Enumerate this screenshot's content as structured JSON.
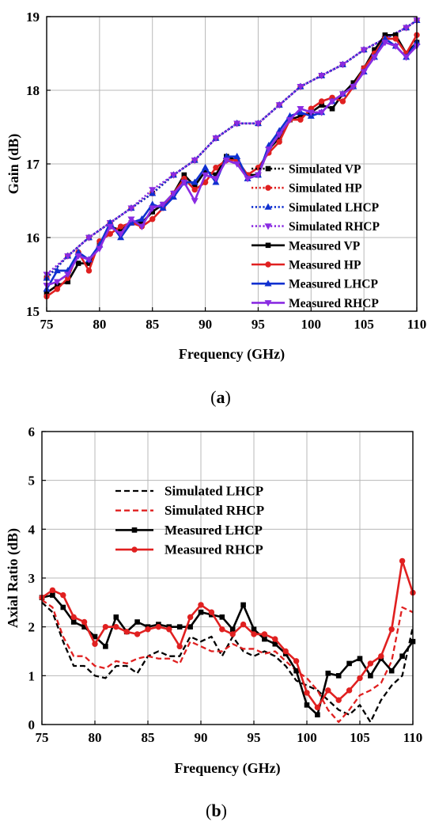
{
  "chart_data": [
    {
      "type": "line",
      "panel_label": [
        "(",
        "a",
        ")"
      ],
      "xlabel": "Frequency (GHz)",
      "ylabel": "Gain (dB)",
      "xlim": [
        75,
        110
      ],
      "ylim": [
        15,
        19
      ],
      "xticks": [
        75,
        80,
        85,
        90,
        95,
        100,
        105,
        110
      ],
      "yticks": [
        15,
        16,
        17,
        18,
        19
      ],
      "grid": true,
      "legend_position": "bottom-right",
      "series": [
        {
          "name": "Simulated VP",
          "style": "dotted",
          "marker": "square",
          "color": "#000000",
          "x": [
            75,
            77,
            79,
            81,
            83,
            85,
            87,
            89,
            91,
            93,
            95,
            97,
            99,
            101,
            103,
            105,
            107,
            109,
            110
          ],
          "y": [
            15.45,
            15.75,
            16.0,
            16.2,
            16.4,
            16.6,
            16.85,
            17.05,
            17.35,
            17.55,
            17.55,
            17.8,
            18.05,
            18.2,
            18.35,
            18.55,
            18.7,
            18.85,
            18.95
          ]
        },
        {
          "name": "Simulated HP",
          "style": "dotted",
          "marker": "circle",
          "color": "#e02020",
          "x": [
            75,
            77,
            79,
            81,
            83,
            85,
            87,
            89,
            91,
            93,
            95,
            97,
            99,
            101,
            103,
            105,
            107,
            109,
            110
          ],
          "y": [
            15.45,
            15.75,
            16.0,
            16.2,
            16.4,
            16.6,
            16.85,
            17.05,
            17.35,
            17.55,
            17.55,
            17.8,
            18.05,
            18.2,
            18.35,
            18.55,
            18.7,
            18.85,
            18.95
          ]
        },
        {
          "name": "Simulated LHCP",
          "style": "dotted",
          "marker": "triangle-up",
          "color": "#1030d0",
          "x": [
            75,
            77,
            79,
            81,
            83,
            85,
            87,
            89,
            91,
            93,
            95,
            97,
            99,
            101,
            103,
            105,
            107,
            109,
            110
          ],
          "y": [
            15.45,
            15.75,
            16.0,
            16.2,
            16.4,
            16.6,
            16.85,
            17.05,
            17.35,
            17.55,
            17.55,
            17.8,
            18.05,
            18.2,
            18.35,
            18.55,
            18.7,
            18.85,
            18.95
          ]
        },
        {
          "name": "Simulated RHCP",
          "style": "dotted",
          "marker": "triangle-down",
          "color": "#8a2be2",
          "x": [
            75,
            77,
            79,
            81,
            83,
            85,
            87,
            89,
            91,
            93,
            95,
            97,
            99,
            101,
            103,
            105,
            107,
            109,
            110
          ],
          "y": [
            15.5,
            15.75,
            16.0,
            16.2,
            16.4,
            16.65,
            16.85,
            17.05,
            17.35,
            17.55,
            17.55,
            17.8,
            18.05,
            18.2,
            18.35,
            18.55,
            18.7,
            18.85,
            18.95
          ]
        },
        {
          "name": "Measured VP",
          "style": "solid",
          "marker": "square",
          "color": "#000000",
          "x": [
            75,
            76,
            77,
            78,
            79,
            80,
            81,
            82,
            83,
            84,
            85,
            86,
            87,
            88,
            89,
            90,
            91,
            92,
            93,
            94,
            95,
            96,
            97,
            98,
            99,
            100,
            101,
            102,
            103,
            104,
            105,
            106,
            107,
            108,
            109,
            110
          ],
          "y": [
            15.25,
            15.35,
            15.4,
            15.65,
            15.65,
            15.9,
            16.15,
            16.1,
            16.2,
            16.2,
            16.35,
            16.45,
            16.6,
            16.85,
            16.7,
            16.9,
            16.85,
            17.1,
            17.05,
            16.85,
            16.85,
            17.2,
            17.35,
            17.6,
            17.65,
            17.7,
            17.8,
            17.75,
            17.95,
            18.1,
            18.3,
            18.55,
            18.75,
            18.75,
            18.5,
            18.65
          ]
        },
        {
          "name": "Measured HP",
          "style": "solid",
          "marker": "circle",
          "color": "#e02020",
          "x": [
            75,
            76,
            77,
            78,
            79,
            80,
            81,
            82,
            83,
            84,
            85,
            86,
            87,
            88,
            89,
            90,
            91,
            92,
            93,
            94,
            95,
            96,
            97,
            98,
            99,
            100,
            101,
            102,
            103,
            104,
            105,
            106,
            107,
            108,
            109,
            110
          ],
          "y": [
            15.2,
            15.3,
            15.45,
            15.8,
            15.55,
            15.95,
            16.05,
            16.15,
            16.2,
            16.15,
            16.25,
            16.4,
            16.6,
            16.8,
            16.65,
            16.75,
            16.95,
            17.05,
            17.05,
            16.85,
            16.95,
            17.15,
            17.3,
            17.6,
            17.6,
            17.75,
            17.85,
            17.9,
            17.85,
            18.05,
            18.3,
            18.5,
            18.7,
            18.7,
            18.5,
            18.75
          ]
        },
        {
          "name": "Measured LHCP",
          "style": "solid",
          "marker": "triangle-up",
          "color": "#1030d0",
          "x": [
            75,
            76,
            77,
            78,
            79,
            80,
            81,
            82,
            83,
            84,
            85,
            86,
            87,
            88,
            89,
            90,
            91,
            92,
            93,
            94,
            95,
            96,
            97,
            98,
            99,
            100,
            101,
            102,
            103,
            104,
            105,
            106,
            107,
            108,
            109,
            110
          ],
          "y": [
            15.3,
            15.55,
            15.55,
            15.8,
            15.7,
            15.9,
            16.2,
            16.0,
            16.2,
            16.25,
            16.45,
            16.4,
            16.55,
            16.75,
            16.75,
            16.95,
            16.75,
            17.1,
            17.1,
            16.8,
            16.85,
            17.25,
            17.45,
            17.65,
            17.7,
            17.65,
            17.7,
            17.85,
            17.95,
            18.05,
            18.25,
            18.45,
            18.7,
            18.6,
            18.45,
            18.65
          ]
        },
        {
          "name": "Measured RHCP",
          "style": "solid",
          "marker": "triangle-down",
          "color": "#8a2be2",
          "x": [
            75,
            76,
            77,
            78,
            79,
            80,
            81,
            82,
            83,
            84,
            85,
            86,
            87,
            88,
            89,
            90,
            91,
            92,
            93,
            94,
            95,
            96,
            97,
            98,
            99,
            100,
            101,
            102,
            103,
            104,
            105,
            106,
            107,
            108,
            109,
            110
          ],
          "y": [
            15.35,
            15.4,
            15.5,
            15.75,
            15.7,
            15.85,
            16.15,
            16.05,
            16.25,
            16.15,
            16.4,
            16.45,
            16.6,
            16.75,
            16.5,
            16.85,
            16.8,
            17.05,
            17.0,
            16.8,
            16.85,
            17.2,
            17.4,
            17.6,
            17.75,
            17.7,
            17.7,
            17.85,
            17.95,
            18.05,
            18.25,
            18.45,
            18.65,
            18.6,
            18.45,
            18.6
          ]
        }
      ]
    },
    {
      "type": "line",
      "panel_label": [
        "(",
        "b",
        ")"
      ],
      "xlabel": "Frequency (GHz)",
      "ylabel": "Axial Ratio (dB)",
      "xlim": [
        75,
        110
      ],
      "ylim": [
        0,
        6
      ],
      "xticks": [
        75,
        80,
        85,
        90,
        95,
        100,
        105,
        110
      ],
      "yticks": [
        0,
        1,
        2,
        3,
        4,
        5,
        6
      ],
      "grid": true,
      "legend_position": "top-left",
      "series": [
        {
          "name": "Simulated  LHCP",
          "style": "dashed",
          "marker": "none",
          "color": "#000000",
          "x": [
            75,
            76,
            77,
            78,
            79,
            80,
            81,
            82,
            83,
            84,
            85,
            86,
            87,
            88,
            89,
            90,
            91,
            92,
            93,
            94,
            95,
            96,
            97,
            98,
            99,
            100,
            101,
            102,
            103,
            104,
            105,
            106,
            107,
            108,
            109,
            110
          ],
          "y": [
            2.5,
            2.3,
            1.7,
            1.2,
            1.2,
            1.0,
            0.95,
            1.2,
            1.2,
            1.05,
            1.4,
            1.5,
            1.4,
            1.4,
            1.8,
            1.7,
            1.8,
            1.4,
            1.8,
            1.5,
            1.4,
            1.5,
            1.4,
            1.2,
            0.9,
            0.8,
            0.7,
            0.5,
            0.3,
            0.2,
            0.4,
            0.05,
            0.5,
            0.8,
            1.0,
            2.0
          ]
        },
        {
          "name": "Simulated  RHCP",
          "style": "dashed",
          "marker": "none",
          "color": "#e02020",
          "x": [
            75,
            76,
            77,
            78,
            79,
            80,
            81,
            82,
            83,
            84,
            85,
            86,
            87,
            88,
            89,
            90,
            91,
            92,
            93,
            94,
            95,
            96,
            97,
            98,
            99,
            100,
            101,
            102,
            103,
            104,
            105,
            106,
            107,
            108,
            109,
            110
          ],
          "y": [
            2.55,
            2.4,
            1.8,
            1.4,
            1.4,
            1.2,
            1.15,
            1.3,
            1.25,
            1.35,
            1.4,
            1.35,
            1.35,
            1.25,
            1.7,
            1.6,
            1.5,
            1.5,
            1.65,
            1.55,
            1.55,
            1.45,
            1.5,
            1.3,
            1.1,
            0.95,
            0.7,
            0.3,
            0.05,
            0.3,
            0.6,
            0.7,
            0.85,
            1.3,
            2.4,
            2.3
          ]
        },
        {
          "name": "Measured  LHCP",
          "style": "solid",
          "marker": "square",
          "color": "#000000",
          "x": [
            75,
            76,
            77,
            78,
            79,
            80,
            81,
            82,
            83,
            84,
            85,
            86,
            87,
            88,
            89,
            90,
            91,
            92,
            93,
            94,
            95,
            96,
            97,
            98,
            99,
            100,
            101,
            102,
            103,
            104,
            105,
            106,
            107,
            108,
            109,
            110
          ],
          "y": [
            2.6,
            2.65,
            2.4,
            2.1,
            2.0,
            1.8,
            1.6,
            2.2,
            1.9,
            2.1,
            2.0,
            2.05,
            2.0,
            2.0,
            2.0,
            2.3,
            2.25,
            2.2,
            1.95,
            2.45,
            1.95,
            1.75,
            1.65,
            1.45,
            1.1,
            0.4,
            0.2,
            1.05,
            1.0,
            1.25,
            1.35,
            1.0,
            1.35,
            1.1,
            1.4,
            1.7
          ]
        },
        {
          "name": "Measured  RHCP",
          "style": "solid",
          "marker": "circle",
          "color": "#e02020",
          "x": [
            75,
            76,
            77,
            78,
            79,
            80,
            81,
            82,
            83,
            84,
            85,
            86,
            87,
            88,
            89,
            90,
            91,
            92,
            93,
            94,
            95,
            96,
            97,
            98,
            99,
            100,
            101,
            102,
            103,
            104,
            105,
            106,
            107,
            108,
            109,
            110
          ],
          "y": [
            2.6,
            2.75,
            2.65,
            2.2,
            2.1,
            1.65,
            2.0,
            2.0,
            1.9,
            1.85,
            1.95,
            2.0,
            1.95,
            1.6,
            2.2,
            2.45,
            2.3,
            1.95,
            1.85,
            2.05,
            1.85,
            1.85,
            1.75,
            1.5,
            1.3,
            0.65,
            0.35,
            0.7,
            0.5,
            0.7,
            0.95,
            1.25,
            1.4,
            1.95,
            3.35,
            2.7
          ]
        }
      ]
    }
  ]
}
